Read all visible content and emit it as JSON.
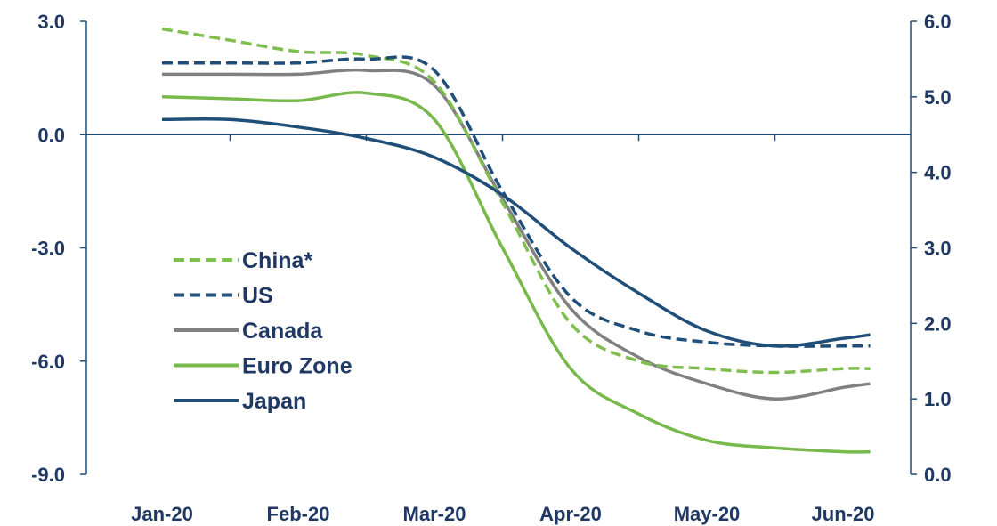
{
  "chart_data": {
    "type": "line",
    "title": "",
    "xlabel": "",
    "ylabel": "",
    "categories": [
      "Jan-20",
      "Feb-20",
      "Mar-20",
      "Apr-20",
      "May-20",
      "Jun-20"
    ],
    "x_start": 0.0,
    "x_end": 5.2,
    "y_left": {
      "range": [
        -9.0,
        3.0
      ],
      "ticks": [
        3.0,
        0.0,
        -3.0,
        -6.0,
        -9.0
      ],
      "labels": [
        "3.0",
        "0.0",
        "-3.0",
        "-6.0",
        "-9.0"
      ]
    },
    "y_right": {
      "range": [
        0.0,
        6.0
      ],
      "ticks": [
        6.0,
        5.0,
        4.0,
        3.0,
        2.0,
        1.0,
        0.0
      ],
      "labels": [
        "6.0",
        "5.0",
        "4.0",
        "3.0",
        "2.0",
        "1.0",
        "0.0"
      ]
    },
    "grid": false,
    "legend_position": "left-middle",
    "series": [
      {
        "name": "China*",
        "axis": "left",
        "color": "#7fbf4f",
        "dash": true,
        "x": [
          0.0,
          0.5,
          1.0,
          1.5,
          2.0,
          2.5,
          3.0,
          3.5,
          4.0,
          4.5,
          5.0,
          5.2
        ],
        "y": [
          2.8,
          2.5,
          2.2,
          2.1,
          1.4,
          -1.8,
          -5.0,
          -6.0,
          -6.2,
          -6.3,
          -6.2,
          -6.2
        ]
      },
      {
        "name": "US",
        "axis": "left",
        "color": "#1f4e79",
        "dash": true,
        "x": [
          0.0,
          0.5,
          1.0,
          1.5,
          2.0,
          2.5,
          3.0,
          3.5,
          4.0,
          4.5,
          5.0,
          5.2
        ],
        "y": [
          1.9,
          1.9,
          1.9,
          2.0,
          1.7,
          -1.5,
          -4.3,
          -5.2,
          -5.5,
          -5.6,
          -5.6,
          -5.6
        ]
      },
      {
        "name": "Canada",
        "axis": "left",
        "color": "#808080",
        "dash": false,
        "x": [
          0.0,
          0.5,
          1.0,
          1.5,
          2.0,
          2.5,
          3.0,
          3.5,
          4.0,
          4.5,
          5.0,
          5.2
        ],
        "y": [
          1.6,
          1.6,
          1.6,
          1.7,
          1.3,
          -1.7,
          -4.6,
          -5.9,
          -6.6,
          -7.0,
          -6.7,
          -6.6
        ]
      },
      {
        "name": "Euro Zone",
        "axis": "left",
        "color": "#78b94c",
        "dash": false,
        "x": [
          0.0,
          0.5,
          1.0,
          1.5,
          2.0,
          2.5,
          3.0,
          3.5,
          4.0,
          4.5,
          5.0,
          5.2
        ],
        "y": [
          1.0,
          0.95,
          0.9,
          1.1,
          0.4,
          -3.0,
          -6.2,
          -7.4,
          -8.1,
          -8.3,
          -8.4,
          -8.4
        ]
      },
      {
        "name": "Japan",
        "axis": "right",
        "color": "#1f4e79",
        "dash": false,
        "x": [
          0.0,
          0.5,
          1.0,
          1.5,
          2.0,
          2.5,
          3.0,
          3.5,
          4.0,
          4.5,
          5.0,
          5.2
        ],
        "y": [
          4.7,
          4.7,
          4.6,
          4.45,
          4.2,
          3.7,
          3.0,
          2.4,
          1.9,
          1.7,
          1.8,
          1.85
        ]
      }
    ]
  }
}
